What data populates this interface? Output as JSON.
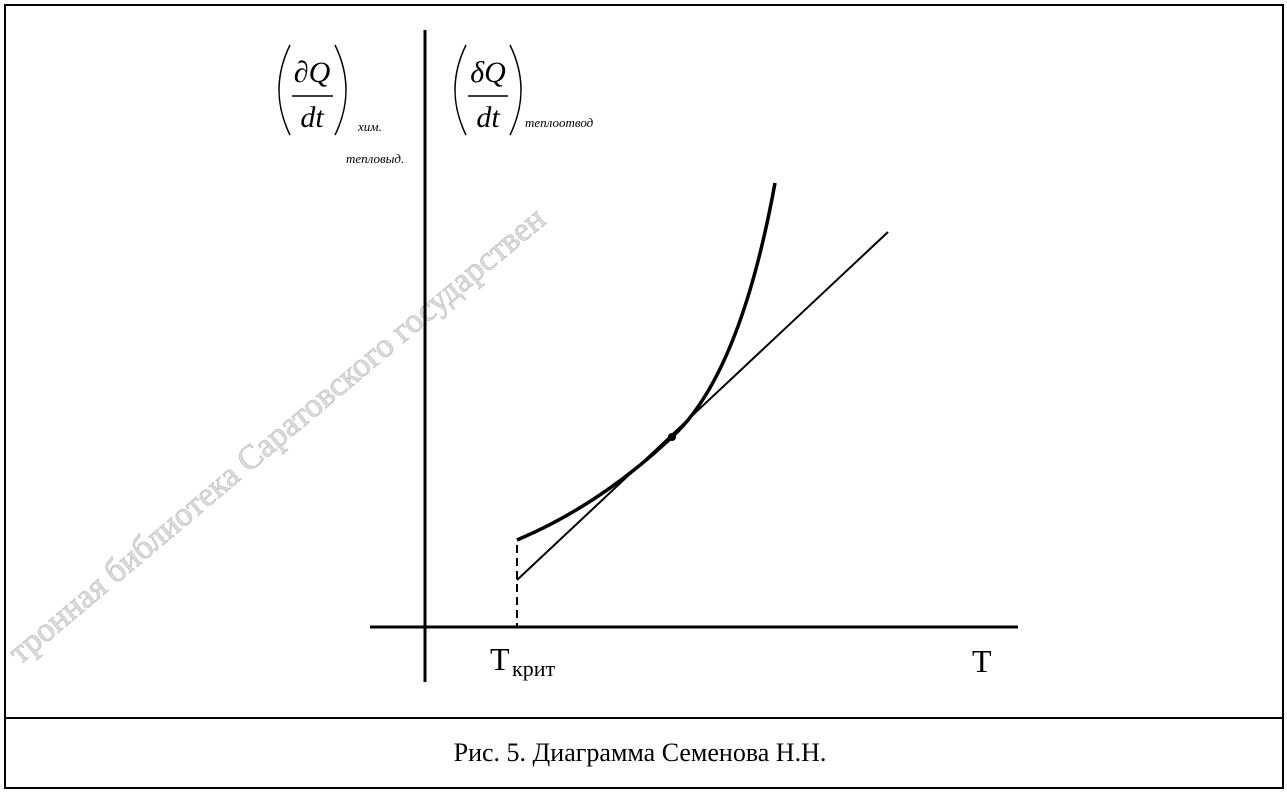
{
  "diagram": {
    "y_label_release": {
      "numerator": "∂Q",
      "denominator": "dt",
      "subscript_top": "хим.",
      "subscript_bottom": "тепловыд."
    },
    "y_label_removal": {
      "numerator": "δQ",
      "denominator": "dt",
      "subscript": "теплоотвод"
    },
    "x_label": "T",
    "critical_label": {
      "main": "T",
      "subscript": "крит"
    },
    "caption": "Рис. 5. Диаграмма Семенова Н.Н.",
    "watermark": "тронная библиотека Саратовского государствен"
  }
}
